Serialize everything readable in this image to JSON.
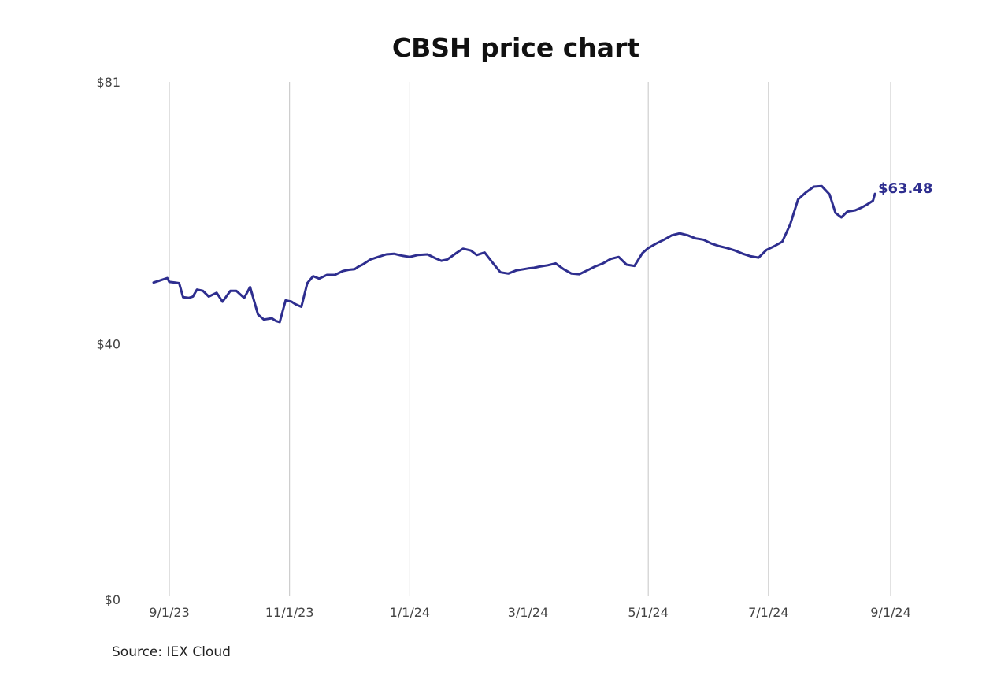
{
  "chart_data": {
    "type": "line",
    "title": "CBSH price chart",
    "source": "Source: IEX Cloud",
    "xlabel": "",
    "ylabel": "",
    "ylim": [
      0,
      81
    ],
    "xlim": [
      "2023-08-26",
      "2024-09-01"
    ],
    "y_ticks": [
      {
        "value": 0,
        "label": "$0"
      },
      {
        "value": 40,
        "label": "$40"
      },
      {
        "value": 81,
        "label": "$81"
      }
    ],
    "x_ticks": [
      {
        "date": "2023-09-01",
        "label": "9/1/23"
      },
      {
        "date": "2023-11-01",
        "label": "11/1/23"
      },
      {
        "date": "2024-01-01",
        "label": "1/1/24"
      },
      {
        "date": "2024-03-01",
        "label": "3/1/24"
      },
      {
        "date": "2024-05-01",
        "label": "5/1/24"
      },
      {
        "date": "2024-07-01",
        "label": "7/1/24"
      },
      {
        "date": "2024-09-01",
        "label": "9/1/24"
      }
    ],
    "grid": "vertical",
    "line_color": "#2e2e8f",
    "end_label": "$63.48",
    "series": [
      {
        "x": [
          "2023-08-24",
          "2023-08-27",
          "2023-08-31",
          "2023-09-01",
          "2023-09-04",
          "2023-09-06",
          "2023-09-08",
          "2023-09-11",
          "2023-09-13",
          "2023-09-15",
          "2023-09-18",
          "2023-09-21",
          "2023-09-25",
          "2023-09-28",
          "2023-10-02",
          "2023-10-05",
          "2023-10-09",
          "2023-10-12",
          "2023-10-16",
          "2023-10-19",
          "2023-10-23",
          "2023-10-25",
          "2023-10-27",
          "2023-10-30",
          "2023-11-02",
          "2023-11-04",
          "2023-11-07",
          "2023-11-10",
          "2023-11-13",
          "2023-11-16",
          "2023-11-20",
          "2023-11-24",
          "2023-11-28",
          "2023-12-01",
          "2023-12-04",
          "2023-12-06",
          "2023-12-08",
          "2023-12-12",
          "2023-12-16",
          "2023-12-20",
          "2023-12-24",
          "2023-12-28",
          "2024-01-01",
          "2024-01-05",
          "2024-01-10",
          "2024-01-14",
          "2024-01-17",
          "2024-01-20",
          "2024-01-25",
          "2024-01-28",
          "2024-02-01",
          "2024-02-04",
          "2024-02-08",
          "2024-02-12",
          "2024-02-16",
          "2024-02-20",
          "2024-02-24",
          "2024-02-28",
          "2024-03-01",
          "2024-03-04",
          "2024-03-07",
          "2024-03-11",
          "2024-03-15",
          "2024-03-19",
          "2024-03-23",
          "2024-03-27",
          "2024-03-31",
          "2024-04-04",
          "2024-04-08",
          "2024-04-12",
          "2024-04-16",
          "2024-04-20",
          "2024-04-24",
          "2024-04-28",
          "2024-05-01",
          "2024-05-05",
          "2024-05-09",
          "2024-05-13",
          "2024-05-17",
          "2024-05-21",
          "2024-05-25",
          "2024-05-29",
          "2024-06-02",
          "2024-06-06",
          "2024-06-10",
          "2024-06-14",
          "2024-06-18",
          "2024-06-22",
          "2024-06-26",
          "2024-06-30",
          "2024-07-04",
          "2024-07-08",
          "2024-07-12",
          "2024-07-16",
          "2024-07-20",
          "2024-07-24",
          "2024-07-28",
          "2024-08-01",
          "2024-08-04",
          "2024-08-07",
          "2024-08-10",
          "2024-08-14",
          "2024-08-17",
          "2024-08-20",
          "2024-08-23",
          "2024-08-24"
        ],
        "y": [
          49.6,
          49.9,
          50.3,
          49.7,
          49.6,
          49.5,
          47.3,
          47.2,
          47.4,
          48.5,
          48.3,
          47.4,
          48.0,
          46.6,
          48.3,
          48.3,
          47.2,
          48.9,
          44.6,
          43.8,
          44.0,
          43.6,
          43.4,
          46.8,
          46.6,
          46.2,
          45.8,
          49.5,
          50.6,
          50.2,
          50.8,
          50.8,
          51.4,
          51.6,
          51.7,
          52.1,
          52.4,
          53.2,
          53.6,
          54.0,
          54.1,
          53.8,
          53.6,
          53.9,
          54.0,
          53.4,
          53.0,
          53.2,
          54.3,
          54.9,
          54.6,
          53.9,
          54.3,
          52.7,
          51.2,
          51.0,
          51.5,
          51.7,
          51.8,
          51.9,
          52.1,
          52.3,
          52.6,
          51.7,
          51.0,
          50.9,
          51.5,
          52.1,
          52.6,
          53.3,
          53.6,
          52.4,
          52.2,
          54.2,
          55.0,
          55.7,
          56.3,
          57.0,
          57.3,
          57.0,
          56.5,
          56.3,
          55.7,
          55.3,
          55.0,
          54.6,
          54.1,
          53.7,
          53.5,
          54.7,
          55.3,
          56.0,
          58.7,
          62.6,
          63.7,
          64.6,
          64.7,
          63.4,
          60.5,
          59.8,
          60.7,
          60.9,
          61.3,
          61.8,
          62.4,
          63.48
        ]
      }
    ]
  }
}
